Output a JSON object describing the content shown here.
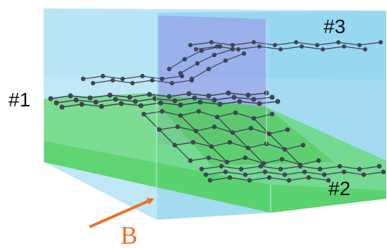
{
  "labels": {
    "sheet_1": "#1",
    "sheet_2": "#2",
    "sheet_3": "#3",
    "field": "B"
  },
  "colors": {
    "box_blue": "#87cdea",
    "box_green": "#5cd35c",
    "purple_plane": "#9d8fe6",
    "lattice": "#3b3f4f",
    "arrow": "#f07122"
  }
}
